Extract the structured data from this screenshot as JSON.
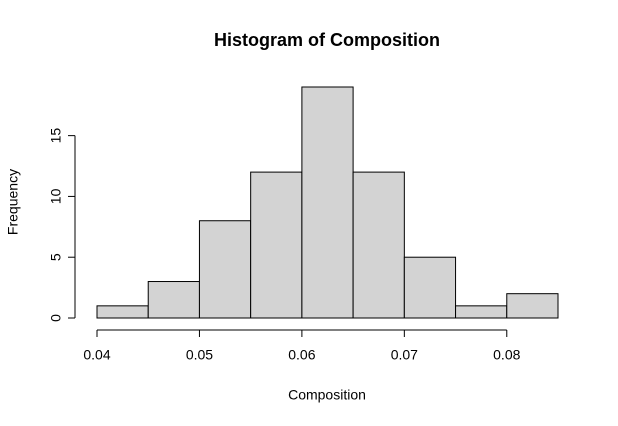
{
  "chart_data": {
    "type": "histogram",
    "title": "Histogram of Composition",
    "xlabel": "Composition",
    "ylabel": "Frequency",
    "bins": [
      0.04,
      0.045,
      0.05,
      0.055,
      0.06,
      0.065,
      0.07,
      0.075,
      0.08,
      0.085
    ],
    "values": [
      1,
      3,
      8,
      12,
      19,
      12,
      5,
      1,
      2
    ],
    "color": "#d3d3d3",
    "xlim": [
      0.04,
      0.085
    ],
    "xticks": [
      0.04,
      0.05,
      0.06,
      0.07,
      0.08
    ],
    "ylim": [
      0,
      19
    ],
    "yticks": [
      0,
      5,
      10,
      15
    ]
  }
}
